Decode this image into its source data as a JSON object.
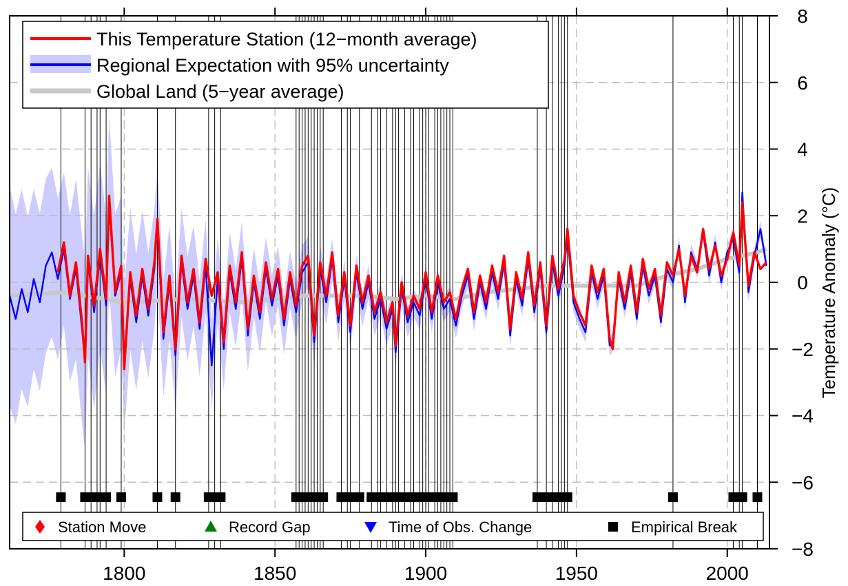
{
  "chart_data": {
    "type": "line",
    "ylabel": "Temperature Anomaly (°C)",
    "xlim": [
      1762,
      2014
    ],
    "ylim": [
      -8,
      8
    ],
    "x_ticks": [
      1800,
      1850,
      1900,
      1950,
      2000
    ],
    "y_ticks": [
      -8,
      -6,
      -4,
      -2,
      0,
      2,
      4,
      6,
      8
    ],
    "x_tick_labels": [
      "1800",
      "1850",
      "1900",
      "1950",
      "2000"
    ],
    "y_tick_labels": [
      "−8",
      "−6",
      "−4",
      "−2",
      "0",
      "2",
      "4",
      "6",
      "8"
    ],
    "grid": true,
    "legend_placement": "top-left",
    "colors": {
      "station": "#ff0000",
      "regional": "#0000ff",
      "uncertainty": "#ccccff",
      "global": "#c8c8c8",
      "breaks": "#000000",
      "station_move": "#ff0000",
      "record_gap": "#008000",
      "tobs_change": "#0000ff"
    },
    "series": [
      {
        "name": "This Temperature Station (12−month average)",
        "x": [
          1778,
          1780,
          1782,
          1784,
          1786,
          1787,
          1788,
          1790,
          1792,
          1794,
          1795,
          1797,
          1799,
          1800,
          1802,
          1804,
          1806,
          1808,
          1810,
          1811,
          1813,
          1815,
          1817,
          1819,
          1821,
          1823,
          1825,
          1827,
          1829,
          1831,
          1833,
          1835,
          1837,
          1839,
          1841,
          1843,
          1845,
          1847,
          1849,
          1851,
          1853,
          1855,
          1857,
          1859,
          1861,
          1863,
          1865,
          1867,
          1869,
          1871,
          1873,
          1875,
          1877,
          1879,
          1881,
          1883,
          1885,
          1887,
          1889,
          1890,
          1892,
          1894,
          1896,
          1898,
          1900,
          1902,
          1904,
          1906,
          1908,
          1910,
          1912,
          1914,
          1916,
          1918,
          1920,
          1922,
          1924,
          1926,
          1928,
          1930,
          1932,
          1934,
          1936,
          1938,
          1940,
          1942,
          1944,
          1946,
          1947,
          1949,
          1951,
          1953,
          1955,
          1957,
          1959,
          1961,
          1962,
          1964,
          1966,
          1968,
          1970,
          1972,
          1974,
          1976,
          1978,
          1980,
          1982,
          1984,
          1986,
          1988,
          1990,
          1992,
          1994,
          1996,
          1998,
          2000,
          2002,
          2004,
          2005,
          2007,
          2009,
          2011,
          2013
        ],
        "y": [
          0.3,
          1.2,
          -0.4,
          0.6,
          -1.2,
          -2.4,
          0.8,
          -0.7,
          1.0,
          -0.5,
          2.6,
          -0.3,
          0.5,
          -2.6,
          0.3,
          -1.0,
          0.4,
          -0.8,
          0.6,
          1.9,
          -1.5,
          0.2,
          -2.0,
          0.8,
          -0.6,
          0.4,
          -1.2,
          0.7,
          -0.4,
          0.3,
          -1.8,
          0.5,
          -0.6,
          0.9,
          -1.4,
          0.2,
          -0.9,
          0.6,
          -0.5,
          0.4,
          -1.1,
          0.3,
          -0.7,
          0.5,
          0.8,
          -1.6,
          0.6,
          -0.4,
          0.9,
          -1.0,
          0.3,
          -1.3,
          0.5,
          -0.6,
          0.2,
          -0.9,
          -0.3,
          -1.2,
          -0.6,
          -1.9,
          0.0,
          -1.0,
          -0.4,
          -0.8,
          0.3,
          -0.9,
          0.2,
          -0.6,
          -0.3,
          -1.1,
          -0.2,
          0.4,
          -0.9,
          0.2,
          -0.6,
          0.5,
          -0.3,
          0.8,
          -1.4,
          0.3,
          -0.5,
          0.9,
          -0.7,
          0.6,
          -1.3,
          0.8,
          -0.2,
          0.7,
          1.6,
          -0.4,
          -0.9,
          -1.3,
          0.5,
          -0.3,
          0.4,
          -1.7,
          -2.0,
          0.3,
          -0.6,
          0.5,
          -0.9,
          0.7,
          -0.2,
          0.4,
          -1.0,
          0.6,
          0.2,
          1.0,
          -0.4,
          0.8,
          0.3,
          1.6,
          0.4,
          1.1,
          0.2,
          0.7,
          1.5,
          0.5,
          2.4,
          -0.1,
          0.9,
          0.4,
          0.6
        ]
      },
      {
        "name": "Regional Expectation with 95% uncertainty",
        "x": [
          1762,
          1764,
          1766,
          1768,
          1770,
          1772,
          1774,
          1776,
          1778,
          1780,
          1782,
          1784,
          1786,
          1787,
          1788,
          1790,
          1792,
          1794,
          1795,
          1797,
          1799,
          1800,
          1802,
          1804,
          1806,
          1808,
          1810,
          1811,
          1813,
          1815,
          1817,
          1819,
          1821,
          1823,
          1825,
          1827,
          1829,
          1831,
          1833,
          1835,
          1837,
          1839,
          1841,
          1843,
          1845,
          1847,
          1849,
          1851,
          1853,
          1855,
          1857,
          1859,
          1861,
          1863,
          1865,
          1867,
          1869,
          1871,
          1873,
          1875,
          1877,
          1879,
          1881,
          1883,
          1885,
          1887,
          1889,
          1890,
          1892,
          1894,
          1896,
          1898,
          1900,
          1902,
          1904,
          1906,
          1908,
          1910,
          1912,
          1914,
          1916,
          1918,
          1920,
          1922,
          1924,
          1926,
          1928,
          1930,
          1932,
          1934,
          1936,
          1938,
          1940,
          1942,
          1944,
          1946,
          1947,
          1949,
          1951,
          1953,
          1955,
          1957,
          1959,
          1961,
          1962,
          1964,
          1966,
          1968,
          1970,
          1972,
          1974,
          1976,
          1978,
          1980,
          1982,
          1984,
          1986,
          1988,
          1990,
          1992,
          1994,
          1996,
          1998,
          2000,
          2002,
          2004,
          2005,
          2007,
          2009,
          2011,
          2013
        ],
        "y": [
          -0.4,
          -1.1,
          -0.2,
          -0.9,
          0.1,
          -0.6,
          0.5,
          0.9,
          0.1,
          1.0,
          -0.5,
          0.4,
          -1.4,
          -2.2,
          0.6,
          -0.9,
          0.8,
          -0.7,
          2.4,
          -0.4,
          0.3,
          -2.4,
          0.1,
          -1.2,
          0.2,
          -1.0,
          0.4,
          1.7,
          -1.7,
          0.0,
          -2.2,
          0.6,
          -0.8,
          0.2,
          -1.4,
          0.5,
          -2.5,
          0.1,
          -2.0,
          0.3,
          -0.8,
          0.7,
          -1.6,
          0.0,
          -1.1,
          0.4,
          -0.7,
          0.2,
          -1.3,
          0.1,
          -0.9,
          0.3,
          0.6,
          -1.8,
          0.4,
          -0.6,
          0.7,
          -1.2,
          0.1,
          -1.5,
          0.3,
          -0.8,
          0.0,
          -1.1,
          -0.5,
          -1.4,
          -0.8,
          -2.1,
          -0.2,
          -1.2,
          -0.6,
          -1.0,
          0.1,
          -1.1,
          0.0,
          -0.8,
          -0.5,
          -1.3,
          -0.4,
          0.2,
          -1.1,
          0.0,
          -0.8,
          0.3,
          -0.5,
          0.6,
          -1.6,
          0.1,
          -0.7,
          0.7,
          -0.9,
          0.4,
          -1.5,
          0.6,
          -0.4,
          0.5,
          1.4,
          -0.6,
          -1.1,
          -1.5,
          0.3,
          -0.5,
          0.2,
          -1.9,
          -1.8,
          0.1,
          -0.8,
          0.3,
          -1.1,
          0.5,
          -0.4,
          0.2,
          -1.2,
          0.4,
          0.0,
          1.1,
          -0.6,
          0.9,
          0.4,
          1.5,
          0.2,
          1.2,
          0.0,
          0.9,
          1.3,
          0.3,
          2.7,
          -0.3,
          0.8,
          1.6,
          0.5
        ]
      },
      {
        "name": "Global Land (5−year average)",
        "x": [
          1762,
          1780,
          1800,
          1820,
          1840,
          1860,
          1880,
          1890,
          1900,
          1910,
          1920,
          1930,
          1940,
          1950,
          1960,
          1970,
          1980,
          1990,
          2000,
          2010,
          2013
        ],
        "y": [
          -0.4,
          -0.3,
          -0.6,
          -0.5,
          -0.6,
          -0.4,
          -0.4,
          -0.5,
          -0.4,
          -0.5,
          -0.3,
          -0.2,
          -0.1,
          -0.1,
          -0.1,
          -0.1,
          0.2,
          0.4,
          0.7,
          0.9,
          1.0
        ]
      }
    ],
    "uncertainty_band": {
      "x": [
        1762,
        1766,
        1770,
        1775,
        1780,
        1785,
        1790,
        1795,
        1800,
        1810,
        1820,
        1830,
        1840,
        1850,
        1860,
        1870,
        1880,
        1890,
        1900,
        1920,
        1940,
        1960,
        1980,
        2000,
        2013
      ],
      "halfwidth": [
        3.3,
        3.0,
        2.7,
        2.6,
        2.3,
        2.8,
        2.9,
        2.6,
        2.2,
        1.8,
        1.6,
        1.3,
        1.1,
        0.9,
        0.8,
        0.6,
        0.5,
        0.5,
        0.4,
        0.35,
        0.3,
        0.3,
        0.25,
        0.25,
        0.25
      ]
    },
    "breakpoints": [
      1779,
      1787,
      1789,
      1791,
      1792,
      1794,
      1799,
      1811,
      1817,
      1828,
      1830,
      1832,
      1857,
      1858,
      1859,
      1860,
      1861,
      1862,
      1863,
      1864,
      1865,
      1866,
      1872,
      1874,
      1875,
      1878,
      1882,
      1884,
      1885,
      1887,
      1889,
      1890,
      1891,
      1893,
      1895,
      1896,
      1898,
      1899,
      1900,
      1901,
      1903,
      1904,
      1905,
      1906,
      1907,
      1908,
      1909,
      1937,
      1940,
      1942,
      1944,
      1945,
      1946,
      1947,
      1982,
      2002,
      2004,
      2005,
      2010
    ],
    "breakpoint_marker_y": -6.45,
    "legend": {
      "entries": [
        {
          "label": "This Temperature Station (12−month average)",
          "key": "station"
        },
        {
          "label": "Regional Expectation with 95% uncertainty",
          "key": "regional"
        },
        {
          "label": "Global Land (5−year average)",
          "key": "global"
        }
      ]
    },
    "marker_legend": {
      "entries": [
        {
          "label": "Station Move",
          "symbol": "diamond",
          "key": "station_move"
        },
        {
          "label": "Record Gap",
          "symbol": "triangle-up",
          "key": "record_gap"
        },
        {
          "label": "Time of Obs. Change",
          "symbol": "triangle-down",
          "key": "tobs_change"
        },
        {
          "label": "Empirical Break",
          "symbol": "square",
          "key": "breaks"
        }
      ]
    }
  }
}
